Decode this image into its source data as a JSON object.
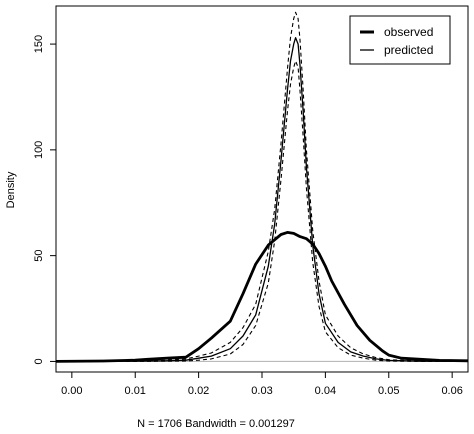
{
  "chart_data": {
    "type": "line",
    "title": "",
    "xlabel": "N = 1706   Bandwidth = 0.001297",
    "ylabel": "Density",
    "xlim": [
      -0.0025,
      0.0625
    ],
    "ylim": [
      -5,
      168
    ],
    "x_ticks": [
      0.0,
      0.01,
      0.02,
      0.03,
      0.04,
      0.05,
      0.06
    ],
    "x_tick_labels": [
      "0.00",
      "0.01",
      "0.02",
      "0.03",
      "0.04",
      "0.05",
      "0.06"
    ],
    "y_ticks": [
      0,
      50,
      100,
      150
    ],
    "y_tick_labels": [
      "0",
      "50",
      "100",
      "150"
    ],
    "baseline": 0,
    "grid": false,
    "legend": {
      "position": "top-right",
      "entries": [
        {
          "label": "observed",
          "style": "thick"
        },
        {
          "label": "predicted",
          "style": "thin"
        }
      ]
    },
    "series": [
      {
        "name": "observed",
        "style": "thick-solid",
        "x": [
          -0.003,
          0.005,
          0.01,
          0.012,
          0.015,
          0.018,
          0.02,
          0.022,
          0.025,
          0.027,
          0.029,
          0.031,
          0.033,
          0.034,
          0.035,
          0.036,
          0.037,
          0.038,
          0.039,
          0.04,
          0.041,
          0.043,
          0.045,
          0.047,
          0.049,
          0.05,
          0.052,
          0.055,
          0.058,
          0.0625
        ],
        "y": [
          0,
          0.2,
          0.6,
          1,
          1.5,
          2,
          6,
          11,
          19,
          32,
          46,
          55,
          60,
          61,
          60.5,
          59,
          58,
          55.5,
          51,
          45,
          38,
          27,
          17,
          10,
          5,
          3,
          1.5,
          1,
          0.5,
          0.3
        ]
      },
      {
        "x": [
          -0.003,
          0.01,
          0.015,
          0.018,
          0.02,
          0.022,
          0.025,
          0.027,
          0.029,
          0.031,
          0.032,
          0.033,
          0.034,
          0.0345,
          0.035,
          0.0353,
          0.0357,
          0.036,
          0.0365,
          0.037,
          0.038,
          0.039,
          0.04,
          0.042,
          0.044,
          0.046,
          0.048,
          0.05,
          0.055,
          0.0625
        ],
        "y": [
          0,
          0.1,
          0.3,
          0.6,
          1.5,
          2.5,
          6,
          12,
          22,
          45,
          65,
          95,
          128,
          142,
          150,
          153,
          150,
          140,
          118,
          92,
          55,
          32,
          18,
          9,
          4.5,
          2.5,
          1.2,
          0.5,
          0.1,
          0
        ]
      },
      {
        "style": "thin-dashed",
        "x": [
          -0.003,
          0.01,
          0.015,
          0.018,
          0.02,
          0.022,
          0.025,
          0.027,
          0.029,
          0.031,
          0.032,
          0.033,
          0.034,
          0.0345,
          0.035,
          0.0353,
          0.0357,
          0.036,
          0.0365,
          0.037,
          0.038,
          0.039,
          0.04,
          0.042,
          0.044,
          0.046,
          0.048,
          0.05,
          0.055,
          0.0625
        ],
        "y": [
          0,
          0.2,
          0.6,
          1.2,
          2.5,
          4,
          9,
          16,
          27,
          52,
          72,
          103,
          138,
          153,
          162,
          165,
          162,
          152,
          128,
          100,
          62,
          38,
          22,
          12,
          6.5,
          3.5,
          1.8,
          0.8,
          0.2,
          0
        ]
      },
      {
        "style": "thin-dashed",
        "x": [
          -0.003,
          0.01,
          0.015,
          0.018,
          0.02,
          0.022,
          0.025,
          0.027,
          0.029,
          0.031,
          0.032,
          0.033,
          0.034,
          0.0345,
          0.035,
          0.0353,
          0.0357,
          0.036,
          0.0365,
          0.037,
          0.038,
          0.039,
          0.04,
          0.042,
          0.044,
          0.046,
          0.048,
          0.05,
          0.055,
          0.0625
        ],
        "y": [
          0,
          0,
          0.1,
          0.2,
          0.6,
          1.2,
          3.5,
          8,
          17,
          37,
          57,
          86,
          118,
          131,
          139,
          142,
          139,
          128,
          106,
          82,
          47,
          26,
          14,
          6.5,
          3,
          1.5,
          0.6,
          0.2,
          0,
          0
        ]
      }
    ]
  }
}
